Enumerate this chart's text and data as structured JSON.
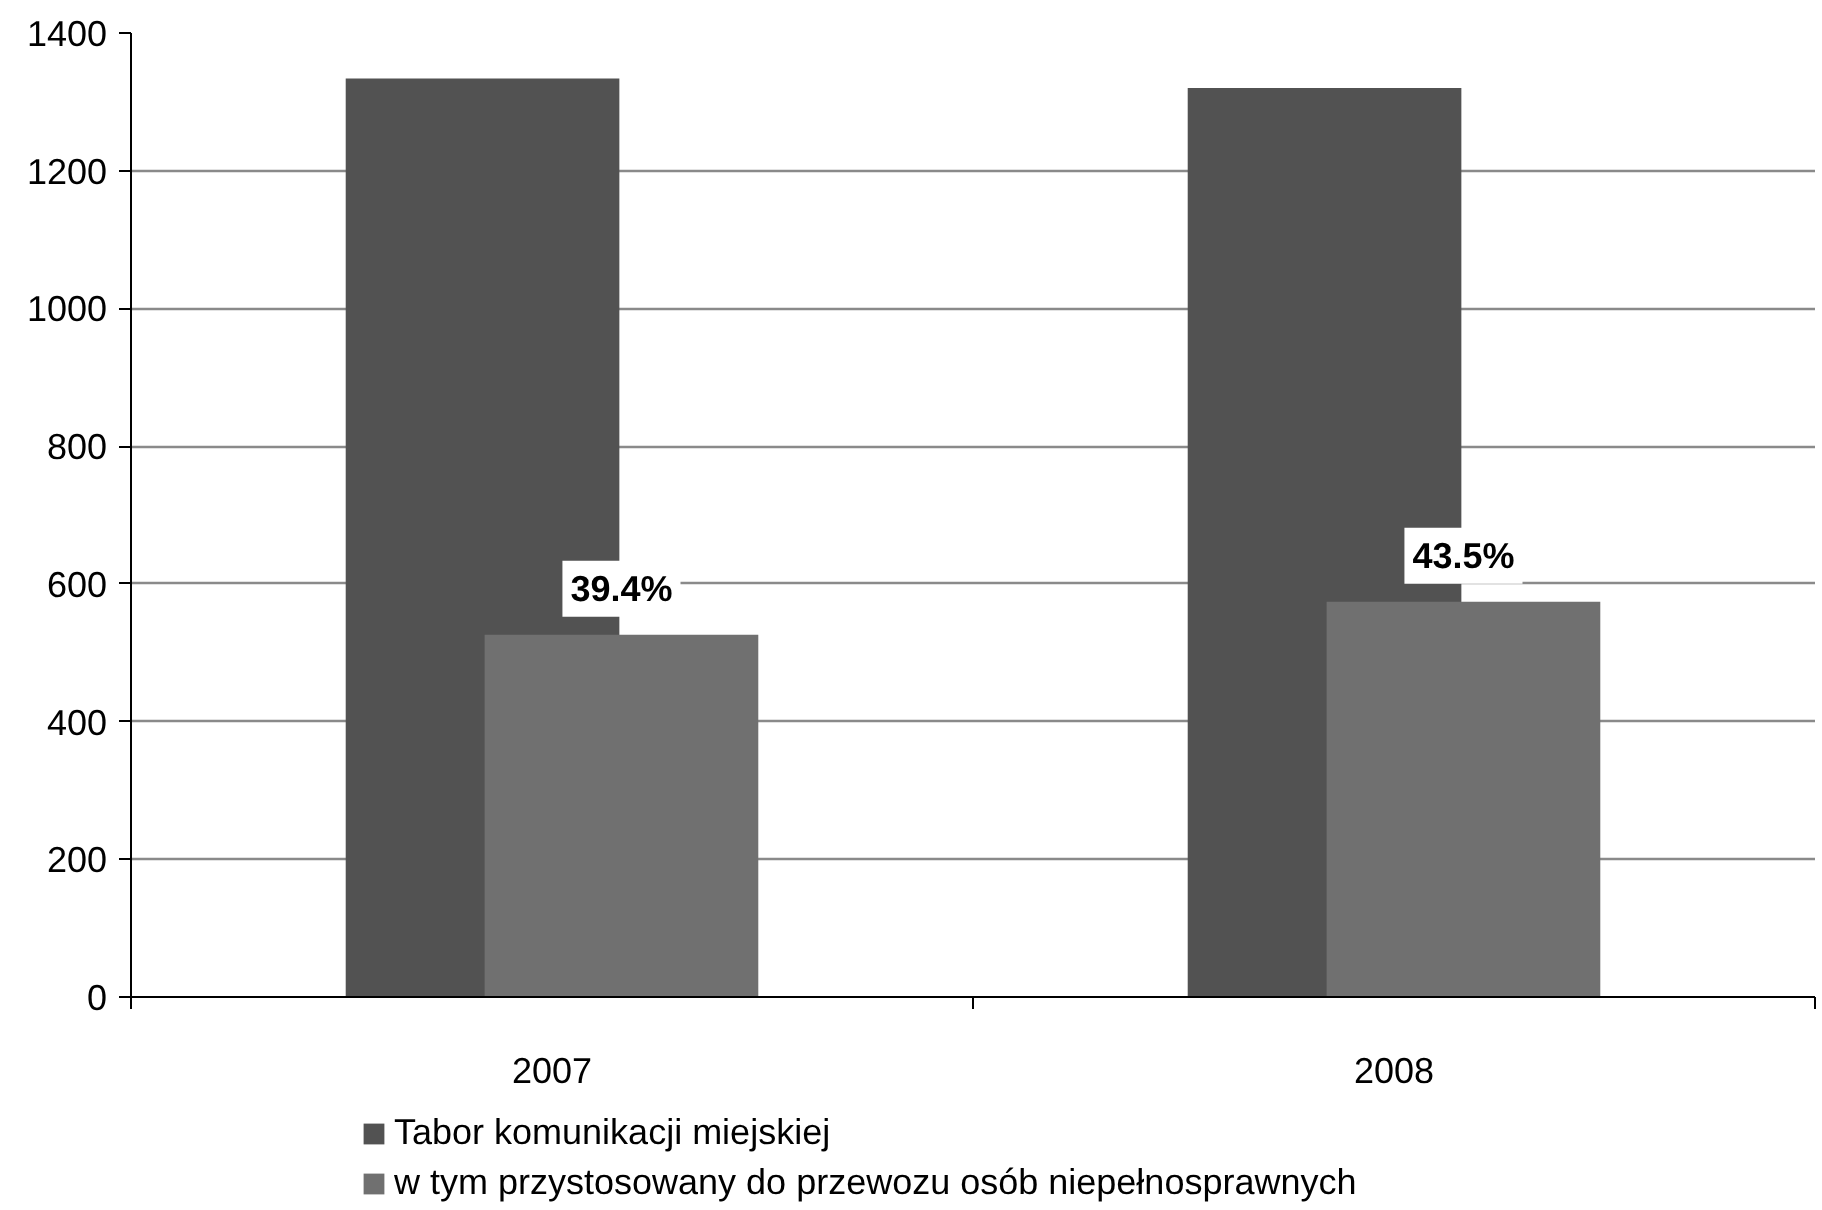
{
  "chart_data": {
    "type": "bar",
    "categories": [
      "2007",
      "2008"
    ],
    "series": [
      {
        "name": "Tabor komunikacji miejskiej",
        "color": "#525252",
        "values": [
          1334,
          1320
        ]
      },
      {
        "name": "w tym przystosowany do przewozu osób niepełnosprawnych",
        "color": "#707070",
        "values": [
          526,
          574
        ]
      }
    ],
    "annotations": [
      {
        "text": "39.4%",
        "x": "2007",
        "y": 526
      },
      {
        "text": "43.5%",
        "x": "2008",
        "y": 574
      }
    ],
    "ylim": [
      0,
      1400
    ],
    "yticks": [
      0,
      200,
      400,
      600,
      800,
      1000,
      1200,
      1400
    ],
    "grid": "y",
    "legend": "bottom"
  }
}
